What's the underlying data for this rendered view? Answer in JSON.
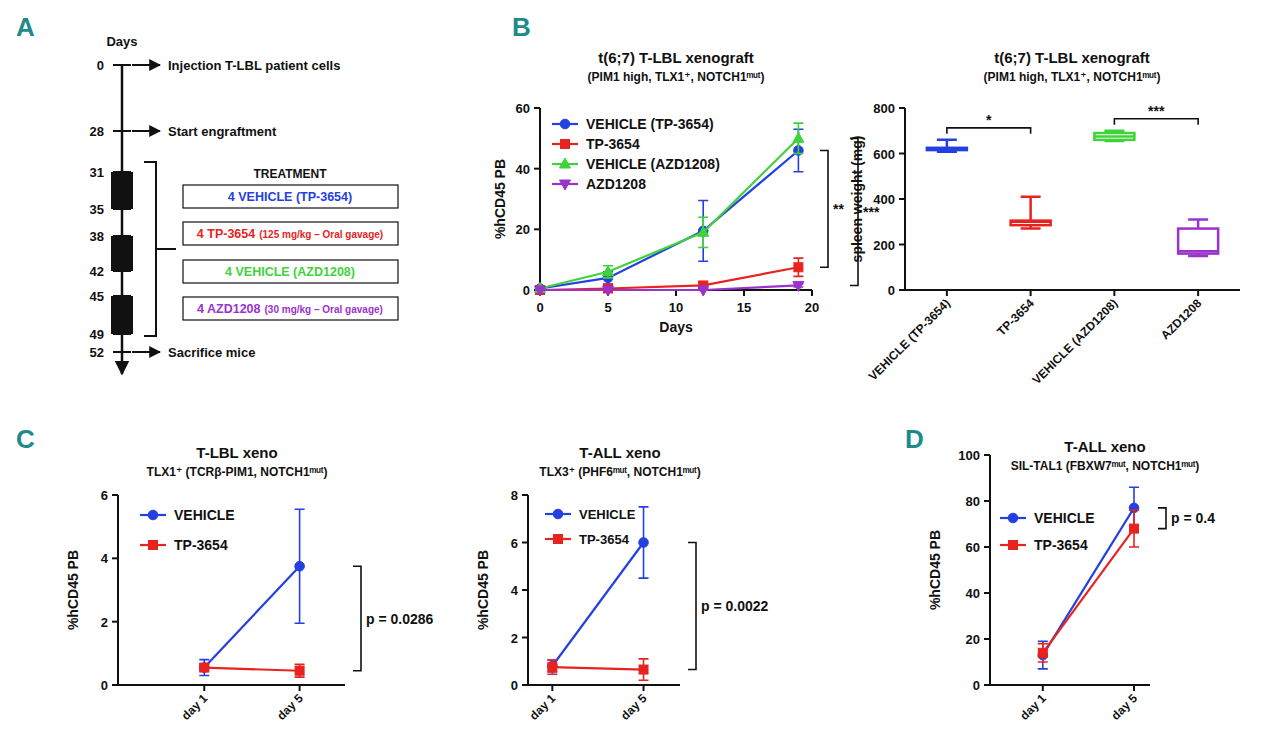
{
  "panel_labels": [
    "A",
    "B",
    "C",
    "D"
  ],
  "diagram": {
    "axis_title": "Days",
    "events": [
      {
        "day": "0",
        "label": "Injection T-LBL patient cells"
      },
      {
        "day": "28",
        "label": "Start engraftment"
      },
      {
        "day": "31"
      },
      {
        "day": "35"
      },
      {
        "day": "38"
      },
      {
        "day": "42"
      },
      {
        "day": "45"
      },
      {
        "day": "49"
      },
      {
        "day": "52",
        "label": "Sacrifice mice"
      }
    ],
    "treatment_title": "TREATMENT",
    "arms": [
      {
        "label": "4 VEHICLE (TP-3654)",
        "color": "#2540e0"
      },
      {
        "label": "4 TP-3654",
        "note": "(125 mg/kg – Oral gavage)",
        "color": "#e8231f"
      },
      {
        "label": "4 VEHICLE (AZD1208)",
        "color": "#3fd23a"
      },
      {
        "label": "4 AZD1208",
        "note": "(30 mg/kg – Oral gavage)",
        "color": "#9933cc"
      }
    ]
  },
  "chart_data": [
    {
      "type": "line",
      "title": "t(6;7) T-LBL xenograft",
      "subtitle": "(PIM1 high, TLX1⁺, NOTCH1ᵐᵘᵗ)",
      "x_label": "Days",
      "y_label": "%hCD45 PB",
      "x": [
        0,
        5,
        12,
        19
      ],
      "xlim": [
        0,
        20
      ],
      "xticks": [
        0,
        5,
        10,
        15,
        20
      ],
      "ylim": [
        0,
        60
      ],
      "yticks": [
        0,
        20,
        40,
        60
      ],
      "legend": "upper left",
      "series": [
        {
          "name": "VEHICLE (TP-3654)",
          "color": "#2540e0",
          "marker": "circle",
          "values": [
            0.5,
            4,
            19.5,
            46
          ],
          "errors": [
            0.3,
            2,
            10,
            7
          ]
        },
        {
          "name": "TP-3654",
          "color": "#e8231f",
          "marker": "square",
          "values": [
            0,
            0.5,
            1.5,
            7.5
          ],
          "errors": [
            0,
            0.5,
            1,
            3
          ]
        },
        {
          "name": "VEHICLE (AZD1208)",
          "color": "#3fd23a",
          "marker": "triangle-up",
          "values": [
            0.5,
            6,
            19,
            50
          ],
          "errors": [
            0.3,
            2,
            5,
            5
          ]
        },
        {
          "name": "AZD1208",
          "color": "#9933cc",
          "marker": "triangle-down",
          "values": [
            0,
            0,
            0,
            1.5
          ],
          "errors": [
            0,
            0,
            0,
            0.5
          ]
        }
      ],
      "annotations": [
        {
          "text": "**",
          "between": [
            "VEHICLE (TP-3654)",
            "TP-3654"
          ]
        },
        {
          "text": "***",
          "between": [
            "VEHICLE (AZD1208)",
            "AZD1208"
          ]
        }
      ]
    },
    {
      "type": "box",
      "title": "t(6;7) T-LBL xenograft",
      "subtitle": "(PIM1 high, TLX1⁺, NOTCH1ᵐᵘᵗ)",
      "y_label": "spleen weight (mg)",
      "categories": [
        "VEHICLE (TP-3654)",
        "TP-3654",
        "VEHICLE (AZD1208)",
        "AZD1208"
      ],
      "colors": [
        "#2540e0",
        "#e8231f",
        "#3fd23a",
        "#9933cc"
      ],
      "min": [
        608,
        270,
        655,
        150
      ],
      "q1": [
        615,
        285,
        660,
        160
      ],
      "median": [
        620,
        300,
        675,
        170
      ],
      "q3": [
        625,
        305,
        690,
        270
      ],
      "max": [
        660,
        410,
        700,
        310
      ],
      "ylim": [
        0,
        800
      ],
      "yticks": [
        0,
        200,
        400,
        600,
        800
      ],
      "annotations": [
        {
          "text": "*",
          "between": [
            "VEHICLE (TP-3654)",
            "TP-3654"
          ]
        },
        {
          "text": "***",
          "between": [
            "VEHICLE (AZD1208)",
            "AZD1208"
          ]
        }
      ]
    },
    {
      "type": "line",
      "title": "T-LBL xeno",
      "subtitle": "TLX1⁺ (TCRβ-PIM1, NOTCH1ᵐᵘᵗ)",
      "y_label": "%hCD45 PB",
      "categories": [
        "day 1",
        "day 5"
      ],
      "ylim": [
        0,
        6
      ],
      "yticks": [
        0,
        2,
        4,
        6
      ],
      "legend": "upper left",
      "series": [
        {
          "name": "VEHICLE",
          "color": "#2540e0",
          "marker": "circle",
          "values": [
            0.55,
            3.75
          ],
          "errors": [
            0.25,
            1.8
          ]
        },
        {
          "name": "TP-3654",
          "color": "#e8231f",
          "marker": "square",
          "values": [
            0.55,
            0.45
          ],
          "errors": [
            0.1,
            0.2
          ]
        }
      ],
      "annotations": [
        {
          "text": "p = 0.0286",
          "between": [
            "VEHICLE",
            "TP-3654"
          ]
        }
      ]
    },
    {
      "type": "line",
      "title": "T-ALL xeno",
      "subtitle": "TLX3⁺ (PHF6ᵐᵘᵗ, NOTCH1ᵐᵘᵗ)",
      "y_label": "%hCD45 PB",
      "categories": [
        "day 1",
        "day 5"
      ],
      "ylim": [
        0,
        8
      ],
      "yticks": [
        0,
        2,
        4,
        6,
        8
      ],
      "legend": "upper left",
      "series": [
        {
          "name": "VEHICLE",
          "color": "#2540e0",
          "marker": "circle",
          "values": [
            0.8,
            6
          ],
          "errors": [
            0.25,
            1.5
          ]
        },
        {
          "name": "TP-3654",
          "color": "#e8231f",
          "marker": "square",
          "values": [
            0.75,
            0.65
          ],
          "errors": [
            0.3,
            0.45
          ]
        }
      ],
      "annotations": [
        {
          "text": "p = 0.0022",
          "between": [
            "VEHICLE",
            "TP-3654"
          ]
        }
      ]
    },
    {
      "type": "line",
      "title": "T-ALL xeno",
      "subtitle": "SIL-TAL1 (FBXW7ᵐᵘᵗ, NOTCH1ᵐᵘᵗ)",
      "y_label": "%hCD45 PB",
      "categories": [
        "day 1",
        "day 5"
      ],
      "ylim": [
        0,
        100
      ],
      "yticks": [
        0,
        20,
        40,
        60,
        80,
        100
      ],
      "legend": "upper left",
      "series": [
        {
          "name": "VEHICLE",
          "color": "#2540e0",
          "marker": "circle",
          "values": [
            13,
            77
          ],
          "errors": [
            6,
            9
          ]
        },
        {
          "name": "TP-3654",
          "color": "#e8231f",
          "marker": "square",
          "values": [
            14,
            68
          ],
          "errors": [
            4,
            8
          ]
        }
      ],
      "annotations": [
        {
          "text": "p = 0.4",
          "between": [
            "VEHICLE",
            "TP-3654"
          ]
        }
      ]
    }
  ]
}
